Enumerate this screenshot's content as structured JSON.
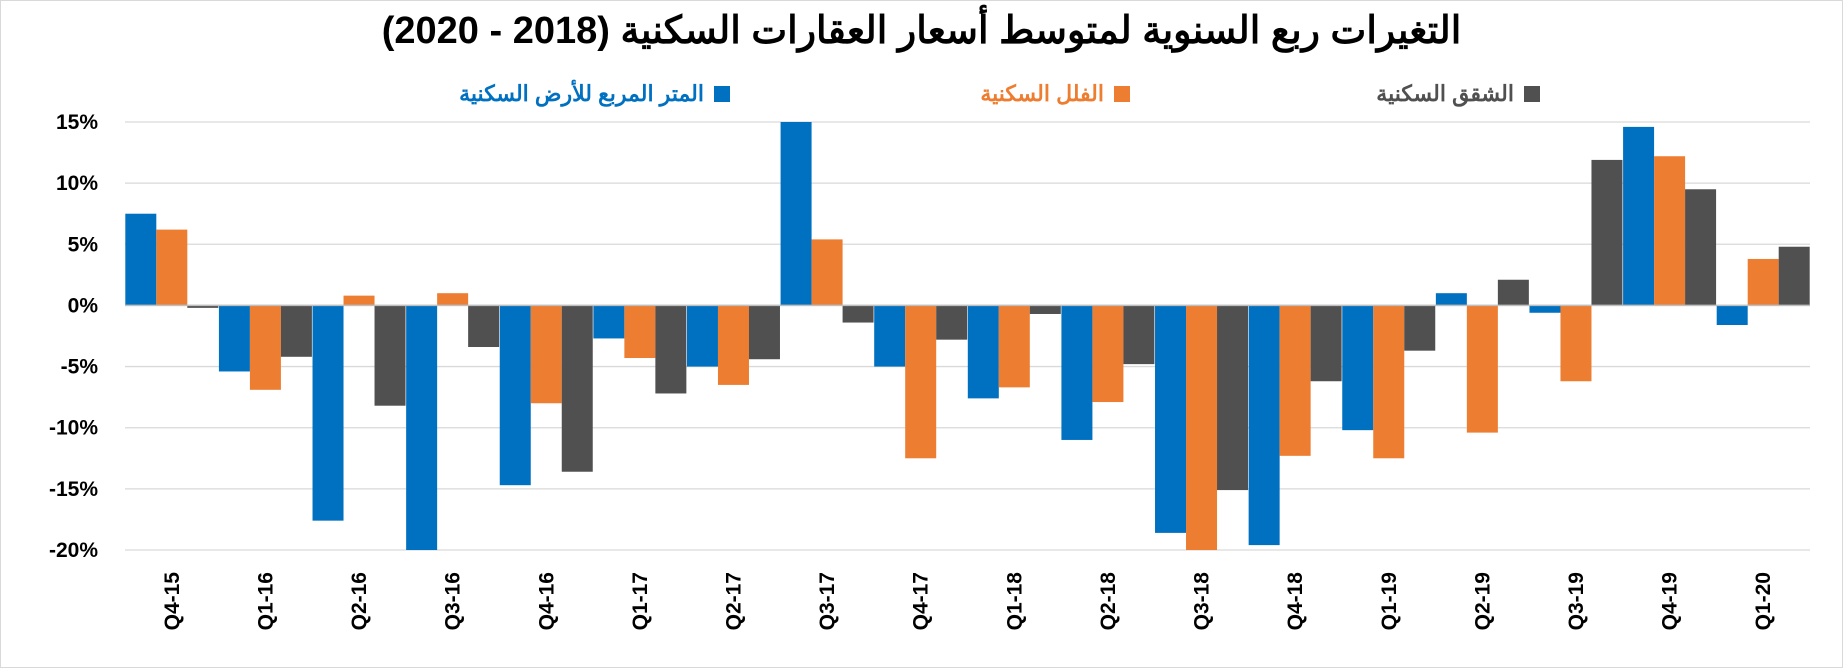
{
  "chart_data": {
    "type": "bar",
    "title": "التغيرات ربع السنوية لمتوسط أسعار العقارات السكنية (2018 - 2020)",
    "xlabel": "",
    "ylabel": "",
    "ylim": [
      -20,
      15
    ],
    "y_ticks": [
      15,
      10,
      5,
      0,
      -5,
      -10,
      -15,
      -20
    ],
    "y_tick_labels": [
      "15%",
      "10%",
      "5%",
      "0%",
      "-5%",
      "-10%",
      "-15%",
      "-20%"
    ],
    "grid": true,
    "legend_position": "top",
    "categories": [
      "Q4-15",
      "Q1-16",
      "Q2-16",
      "Q3-16",
      "Q4-16",
      "Q1-17",
      "Q2-17",
      "Q3-17",
      "Q4-17",
      "Q1-18",
      "Q2-18",
      "Q3-18",
      "Q4-18",
      "Q1-19",
      "Q2-19",
      "Q3-19",
      "Q4-19",
      "Q1-20"
    ],
    "series": [
      {
        "name": "المتر المربع للأرض السكنية",
        "color": "#0070c0",
        "values": [
          7.5,
          -5.4,
          -17.6,
          -20.0,
          -14.7,
          -2.7,
          -5.0,
          15.0,
          -5.0,
          -7.6,
          -11.0,
          -18.6,
          -19.6,
          -10.2,
          1.0,
          -0.6,
          14.6,
          -1.6
        ]
      },
      {
        "name": "الفلل السكنية",
        "color": "#ed7d31",
        "values": [
          6.2,
          -6.9,
          0.8,
          1.0,
          -8.0,
          -4.3,
          -6.5,
          5.4,
          -12.5,
          -6.7,
          -7.9,
          -20.0,
          -12.3,
          -12.5,
          -10.4,
          -6.2,
          12.2,
          3.8
        ]
      },
      {
        "name": "الشقق السكنية",
        "color": "#505050",
        "values": [
          -0.2,
          -4.2,
          -8.2,
          -3.4,
          -13.6,
          -7.2,
          -4.4,
          -1.4,
          -2.8,
          -0.7,
          -4.8,
          -15.1,
          -6.2,
          -3.7,
          2.1,
          11.9,
          9.5,
          4.8
        ]
      }
    ]
  }
}
